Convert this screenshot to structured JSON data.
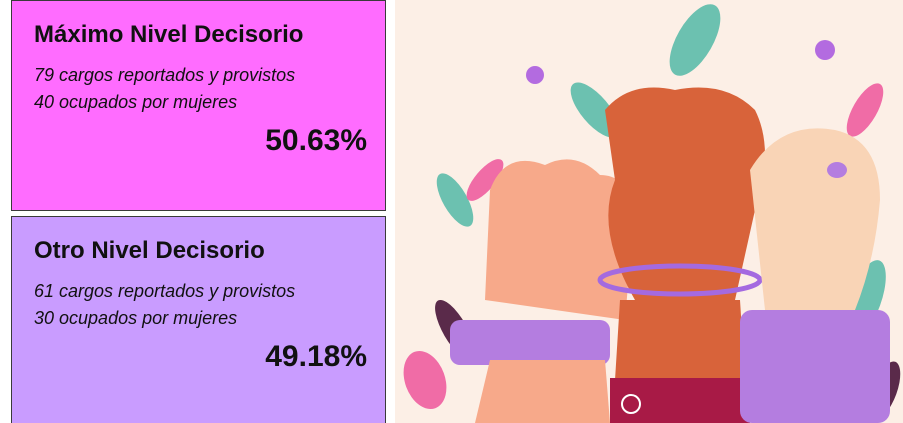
{
  "cards": [
    {
      "title": "Máximo Nivel Decisorio",
      "line1": "79 cargos reportados y provistos",
      "line2": "40 ocupados por mujeres",
      "percent": "50.63%"
    },
    {
      "title": "Otro Nivel Decisorio",
      "line1": "61 cargos reportados y provistos",
      "line2": "30 ocupados por mujeres",
      "percent": "49.18%"
    }
  ]
}
